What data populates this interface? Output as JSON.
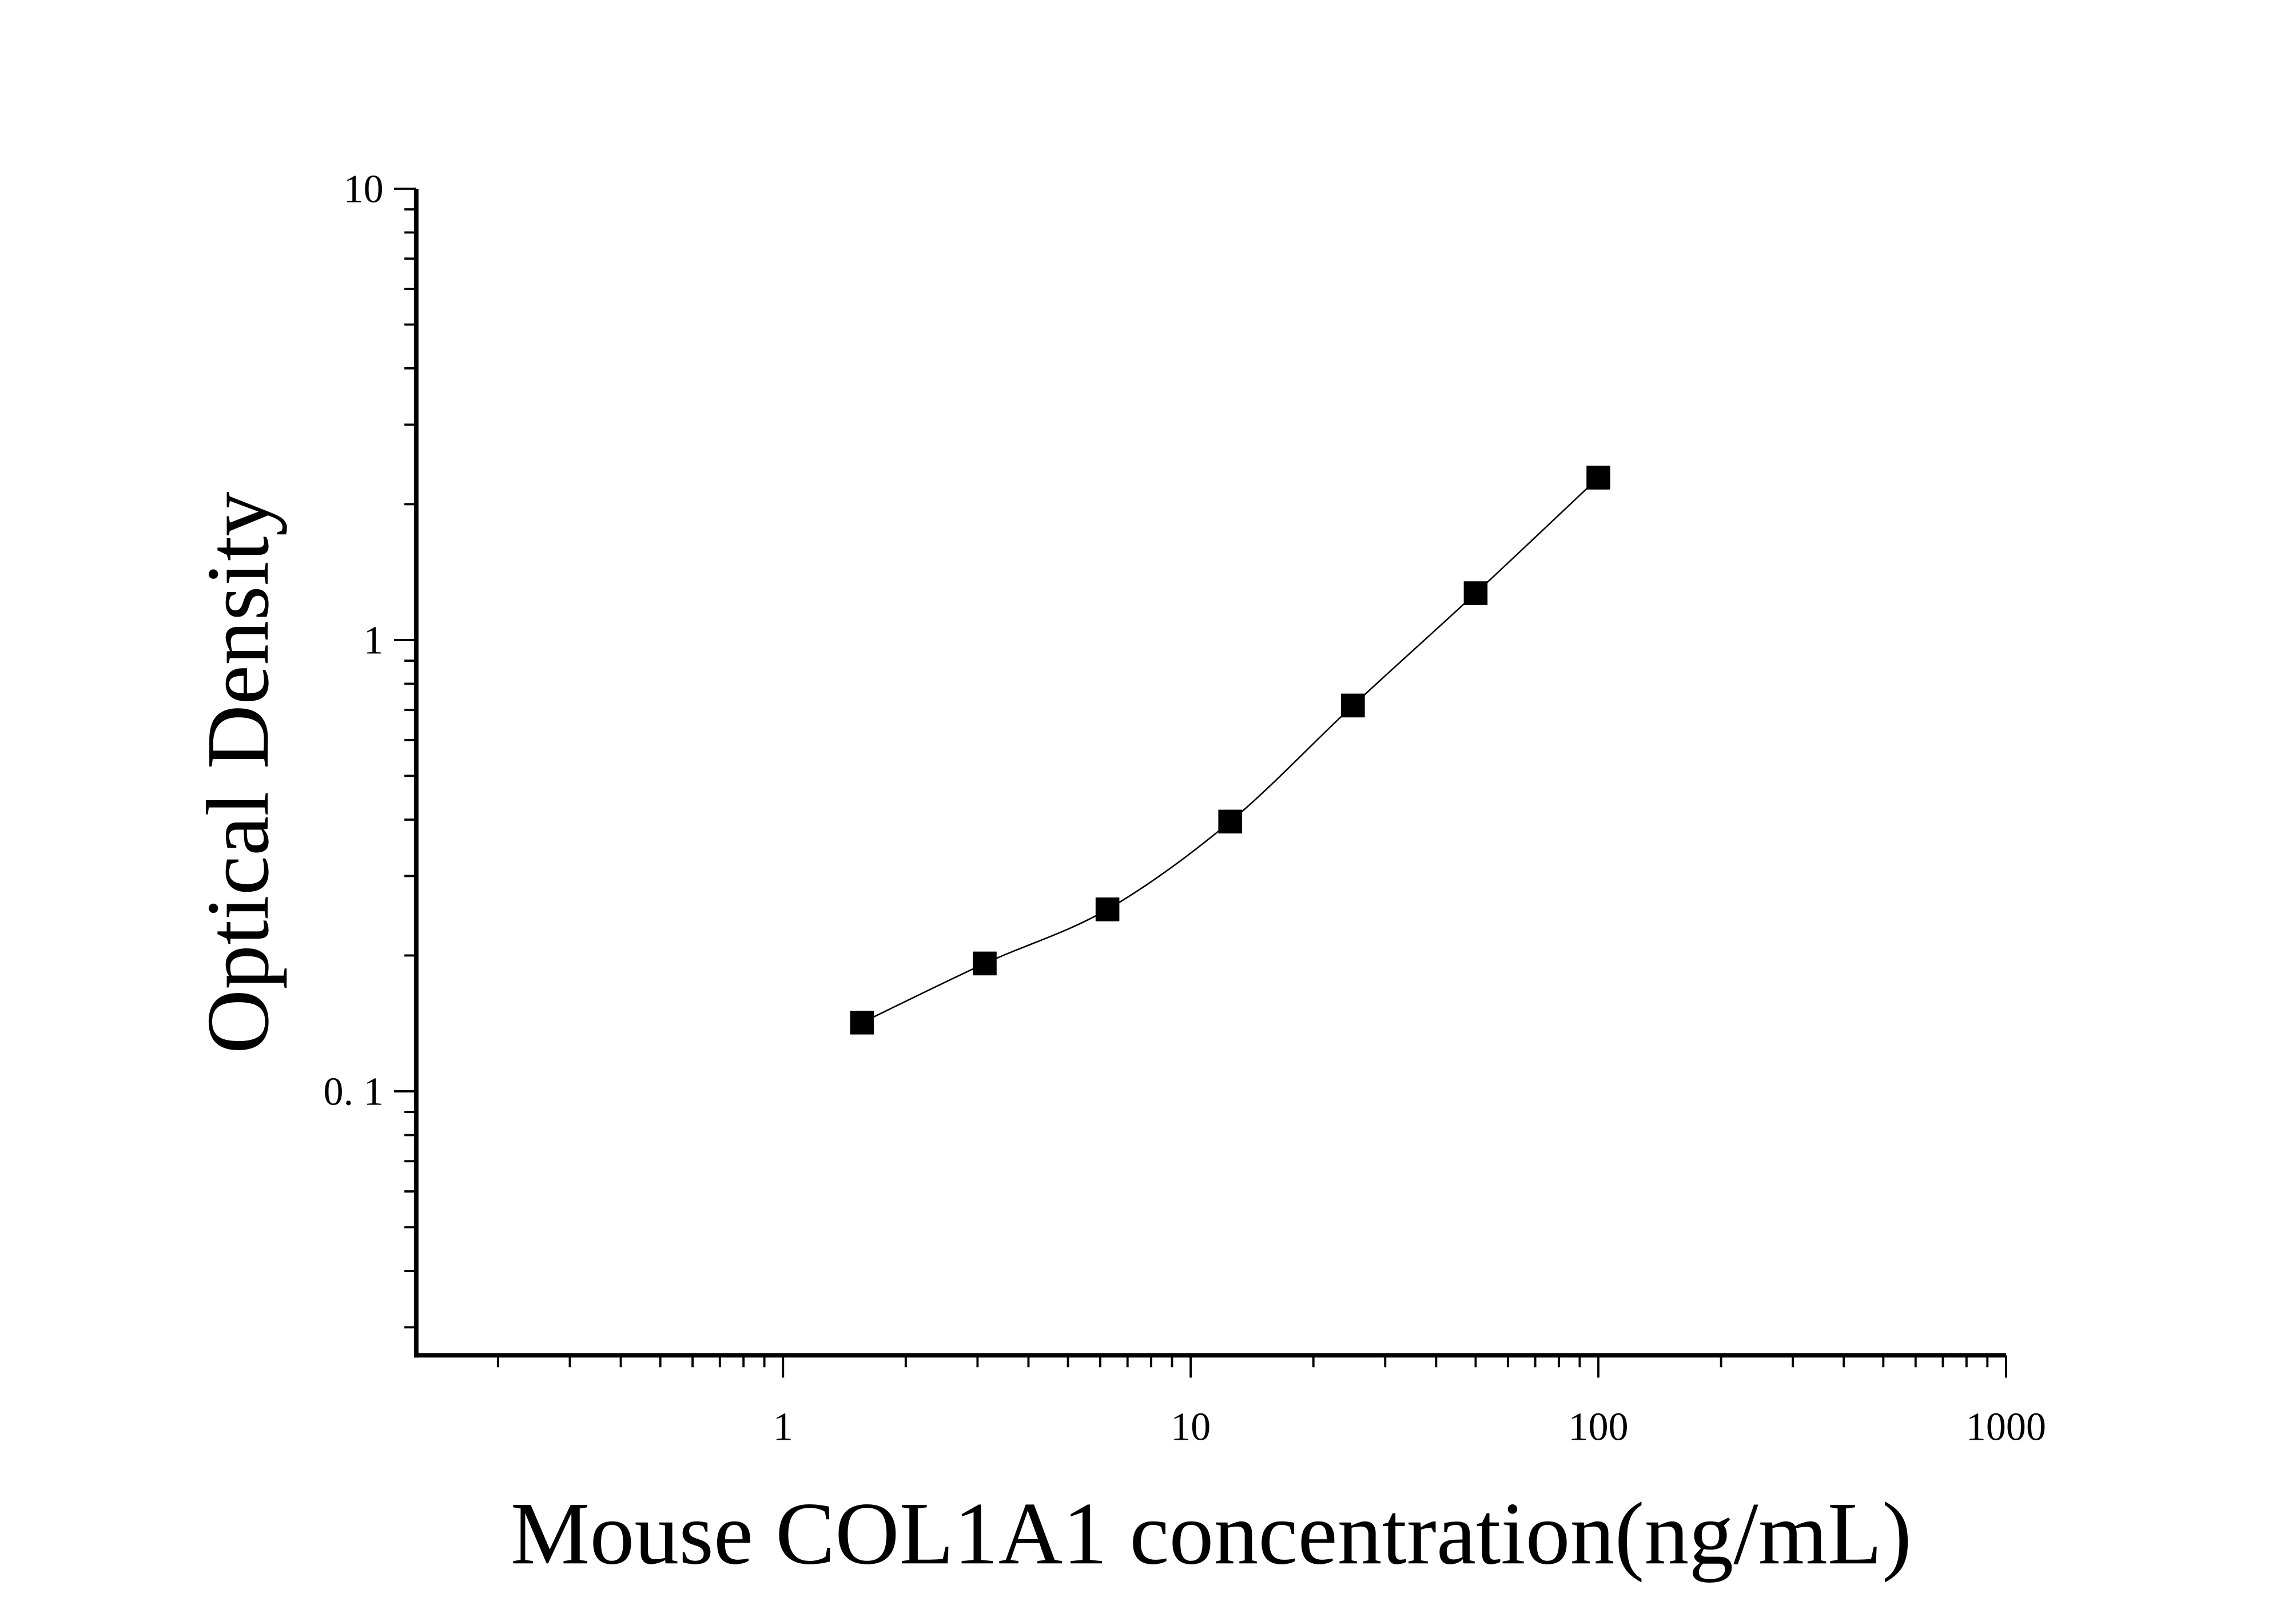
{
  "chart_data": {
    "type": "scatter",
    "title": "",
    "xlabel": "Mouse COL1A1 concentration(ng/mL)",
    "ylabel": "Optical Density",
    "x_scale": "log",
    "y_scale": "log",
    "xlim": [
      0.126,
      1000
    ],
    "ylim": [
      0.026,
      10
    ],
    "x_ticks": [
      {
        "value": 1,
        "label": "1"
      },
      {
        "value": 10,
        "label": "10"
      },
      {
        "value": 100,
        "label": "100"
      },
      {
        "value": 1000,
        "label": "1000"
      }
    ],
    "y_ticks": [
      {
        "value": 0.1,
        "label": "0. 1"
      },
      {
        "value": 1,
        "label": "1"
      },
      {
        "value": 10,
        "label": "10"
      }
    ],
    "grid": false,
    "legend": "none",
    "marker": "square",
    "color": "#000000",
    "fit_line": true,
    "series": [
      {
        "x": [
          1.5625,
          3.125,
          6.25,
          12.5,
          25,
          50,
          100
        ],
        "y": [
          0.142,
          0.192,
          0.253,
          0.396,
          0.716,
          1.27,
          2.29
        ]
      }
    ]
  }
}
